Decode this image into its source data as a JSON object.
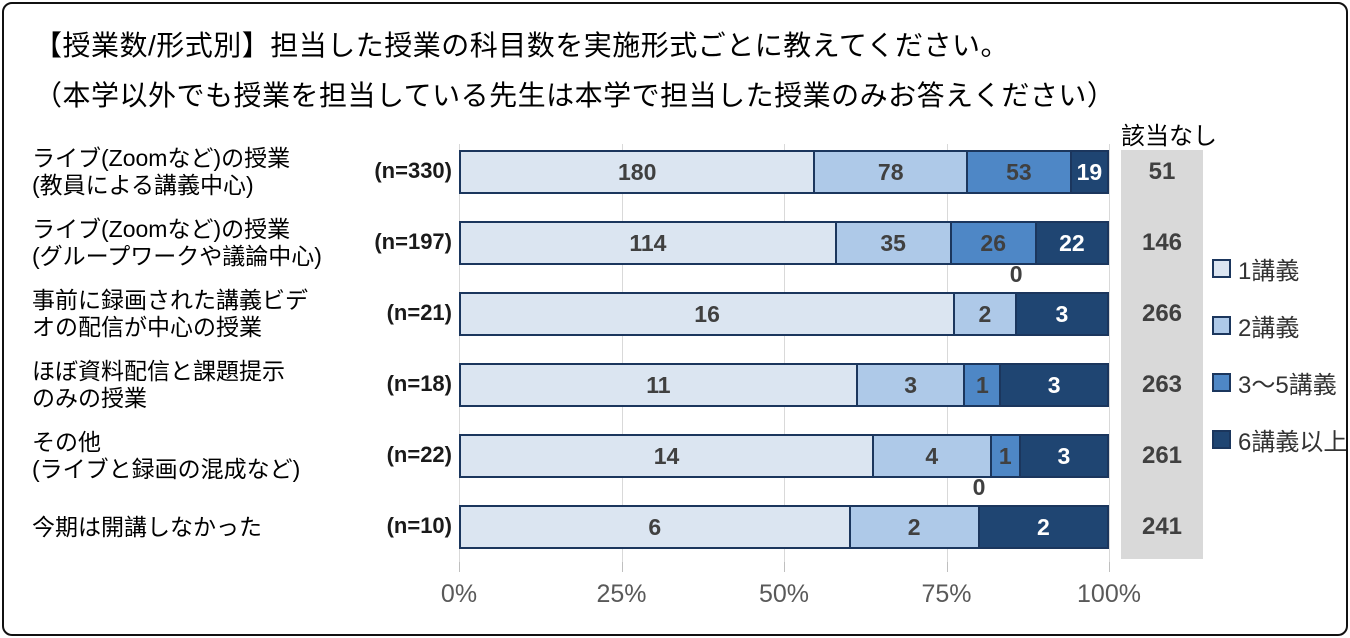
{
  "title": {
    "line1": "【授業数/形式別】担当した授業の科目数を実施形式ごとに教えてください。",
    "line2": "（本学以外でも授業を担当している先生は本学で担当した授業のみお答えください）"
  },
  "na_header": "該当なし",
  "legend": [
    {
      "label": "1講義",
      "color": "#dbe5f1"
    },
    {
      "label": "2講義",
      "color": "#aec9e8"
    },
    {
      "label": "3〜5講義",
      "color": "#4e87c6"
    },
    {
      "label": "6講義以上",
      "color": "#1f4572"
    }
  ],
  "colors": {
    "segment_border": "#1b365d",
    "na_background": "#d9d9d9",
    "gridline": "#d9d9d9",
    "axis_text": "#595959",
    "value_text_dark": "#404040",
    "value_text_light": "#ffffff",
    "frame_border": "#111111"
  },
  "chart_data": {
    "type": "bar",
    "stacked": true,
    "orientation": "horizontal",
    "title": "【授業数/形式別】担当した授業の科目数を実施形式ごとに教えてください。（本学以外でも授業を担当している先生は本学で担当した授業のみお答えください）",
    "series_names": [
      "1講義",
      "2講義",
      "3〜5講義",
      "6講義以上"
    ],
    "na_column_header": "該当なし",
    "x_axis": {
      "ticks": [
        "0%",
        "25%",
        "50%",
        "75%",
        "100%"
      ],
      "range": [
        0,
        100
      ],
      "unit": "percent",
      "grid": true
    },
    "rows": [
      {
        "label_lines": [
          "ライブ(Zoomなど)の授業",
          "(教員による講義中心)"
        ],
        "n_label": "(n=330)",
        "n": 330,
        "values": [
          180,
          78,
          53,
          19
        ],
        "na": 51
      },
      {
        "label_lines": [
          "ライブ(Zoomなど)の授業",
          "(グループワークや議論中心)"
        ],
        "n_label": "(n=197)",
        "n": 197,
        "values": [
          114,
          35,
          26,
          22
        ],
        "na": 146
      },
      {
        "label_lines": [
          "事前に録画された講義ビデ",
          "オの配信が中心の授業"
        ],
        "n_label": "(n=21)",
        "n": 21,
        "values": [
          16,
          2,
          0,
          3
        ],
        "na": 266
      },
      {
        "label_lines": [
          "ほぼ資料配信と課題提示",
          "のみの授業"
        ],
        "n_label": "(n=18)",
        "n": 18,
        "values": [
          11,
          3,
          1,
          3
        ],
        "na": 263
      },
      {
        "label_lines": [
          "その他",
          "(ライブと録画の混成など)"
        ],
        "n_label": "(n=22)",
        "n": 22,
        "values": [
          14,
          4,
          1,
          3
        ],
        "na": 261
      },
      {
        "label_lines": [
          "今期は開講しなかった"
        ],
        "n_label": "(n=10)",
        "n": 10,
        "values": [
          6,
          2,
          0,
          2
        ],
        "na": 241
      }
    ]
  }
}
